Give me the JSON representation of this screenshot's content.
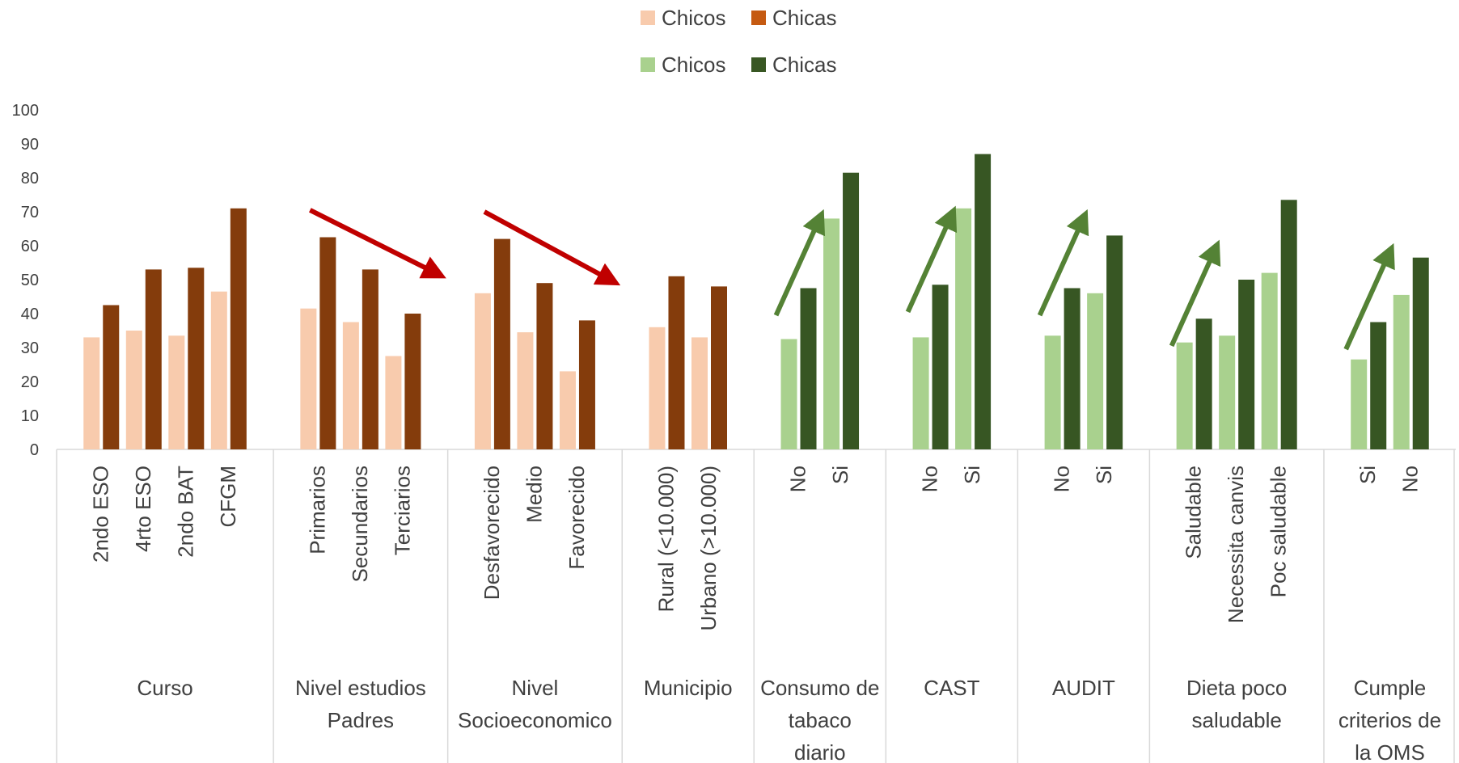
{
  "chart_data": {
    "type": "bar",
    "title": "",
    "xlabel": "",
    "ylabel": "",
    "ylim": [
      0,
      100
    ],
    "yticks": [
      0,
      10,
      20,
      30,
      40,
      50,
      60,
      70,
      80,
      90,
      100
    ],
    "legend_placement": "top-center",
    "legend": [
      [
        {
          "label": "Chicos",
          "color": "#F8CBAD"
        },
        {
          "label": "Chicas",
          "color": "#C55A11"
        }
      ],
      [
        {
          "label": "Chicos",
          "color": "#A9D18E"
        },
        {
          "label": "Chicas",
          "color": "#385723"
        }
      ]
    ],
    "colors": {
      "chicos_orange": "#F8CBAD",
      "chicas_orange": "#843C0C",
      "chicos_green": "#A9D18E",
      "chicas_green": "#375623",
      "arrow_red": "#C00000",
      "arrow_green": "#548235"
    },
    "groups": [
      {
        "label": "Curso",
        "palette": "orange",
        "trend": "",
        "categories": [
          {
            "label": "2ndo ESO",
            "chicos": 33,
            "chicas": 42.5
          },
          {
            "label": "4rto ESO",
            "chicos": 35,
            "chicas": 53
          },
          {
            "label": "2ndo BAT",
            "chicos": 33.5,
            "chicas": 53.5
          },
          {
            "label": "CFGM",
            "chicos": 46.5,
            "chicas": 71
          }
        ]
      },
      {
        "label": "Nivel estudios Padres",
        "palette": "orange",
        "trend": "down",
        "categories": [
          {
            "label": "Primarios",
            "chicos": 41.5,
            "chicas": 62.5
          },
          {
            "label": "Secundarios",
            "chicos": 37.5,
            "chicas": 53
          },
          {
            "label": "Terciarios",
            "chicos": 27.5,
            "chicas": 40
          }
        ]
      },
      {
        "label": "Nivel Socioeconomico",
        "palette": "orange",
        "trend": "down",
        "categories": [
          {
            "label": "Desfavorecido",
            "chicos": 46,
            "chicas": 62
          },
          {
            "label": "Medio",
            "chicos": 34.5,
            "chicas": 49
          },
          {
            "label": "Favorecido",
            "chicos": 23,
            "chicas": 38
          }
        ]
      },
      {
        "label": "Municipio",
        "palette": "orange",
        "trend": "",
        "categories": [
          {
            "label": "Rural (<10.000)",
            "chicos": 36,
            "chicas": 51
          },
          {
            "label": "Urbano (>10.000)",
            "chicos": 33,
            "chicas": 48
          }
        ]
      },
      {
        "label": "Consumo de tabaco diario",
        "palette": "green",
        "trend": "up",
        "categories": [
          {
            "label": "No",
            "chicos": 32.5,
            "chicas": 47.5
          },
          {
            "label": "Si",
            "chicos": 68,
            "chicas": 81.5
          }
        ]
      },
      {
        "label": "CAST",
        "palette": "green",
        "trend": "up",
        "categories": [
          {
            "label": "No",
            "chicos": 33,
            "chicas": 48.5
          },
          {
            "label": "Si",
            "chicos": 71,
            "chicas": 87
          }
        ]
      },
      {
        "label": "AUDIT",
        "palette": "green",
        "trend": "up",
        "categories": [
          {
            "label": "No",
            "chicos": 33.5,
            "chicas": 47.5
          },
          {
            "label": "Si",
            "chicos": 46,
            "chicas": 63
          }
        ]
      },
      {
        "label": "Dieta poco saludable",
        "palette": "green",
        "trend": "up",
        "categories": [
          {
            "label": "Saludable",
            "chicos": 31.5,
            "chicas": 38.5
          },
          {
            "label": "Necessita canvis",
            "chicos": 33.5,
            "chicas": 50
          },
          {
            "label": "Poc saludable",
            "chicos": 52,
            "chicas": 73.5
          }
        ]
      },
      {
        "label": "Cumple criterios de la OMS",
        "palette": "green",
        "trend": "up",
        "categories": [
          {
            "label": "Si",
            "chicos": 26.5,
            "chicas": 37.5
          },
          {
            "label": "No",
            "chicos": 45.5,
            "chicas": 56.5
          }
        ]
      }
    ]
  }
}
